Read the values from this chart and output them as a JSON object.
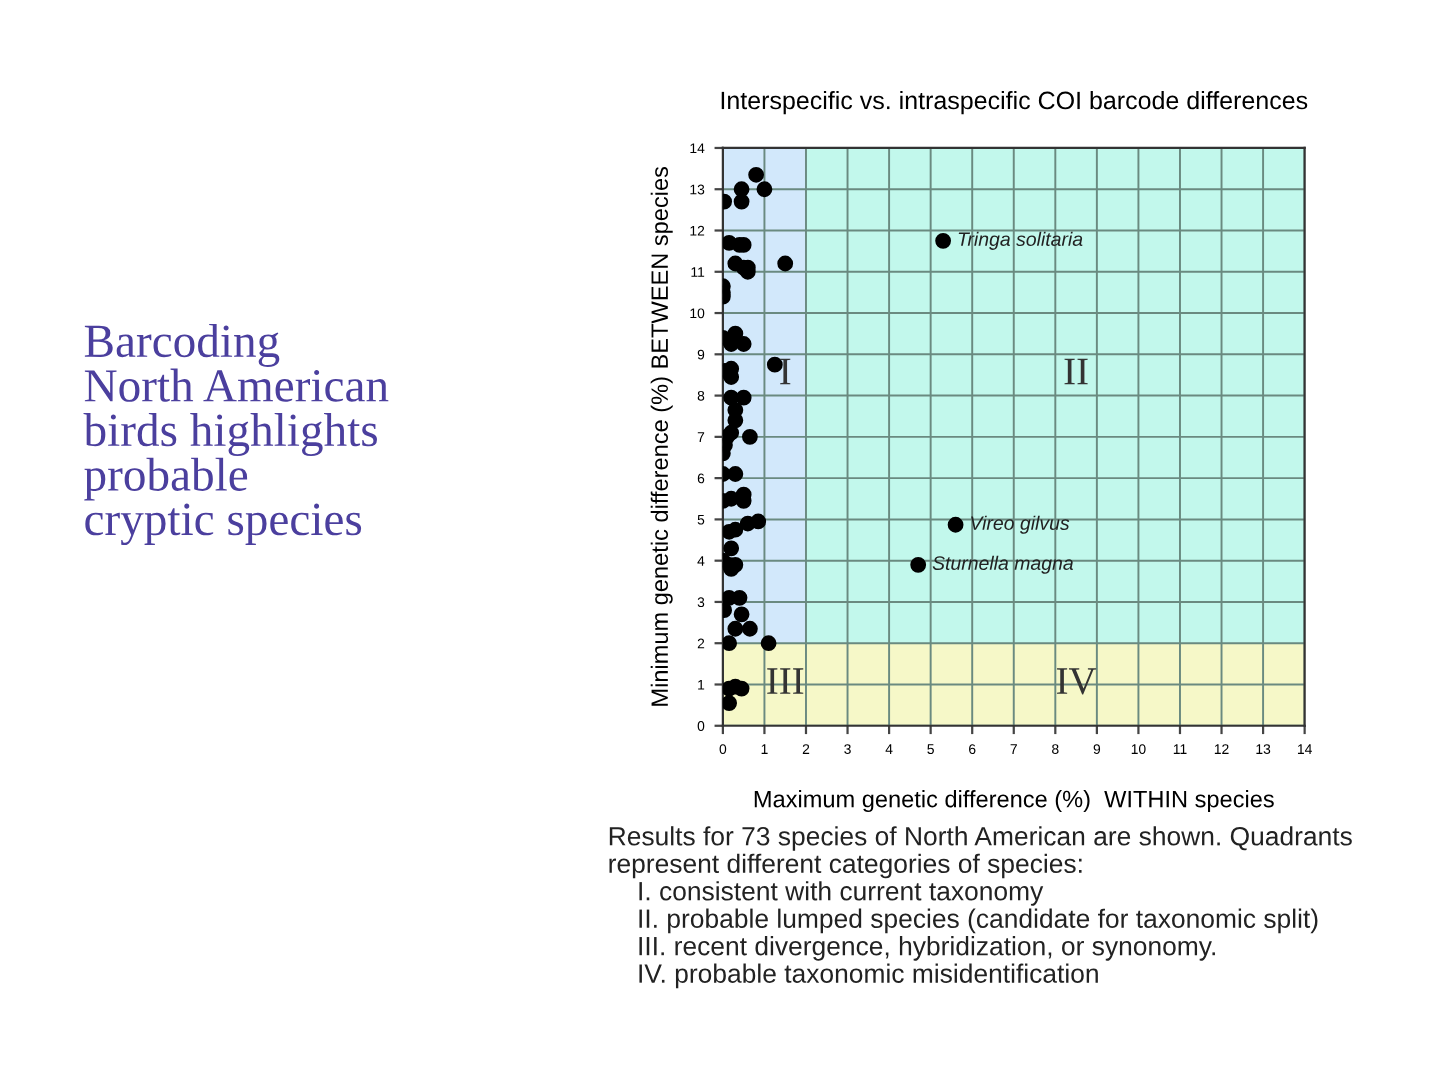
{
  "chart_data": {
    "type": "scatter",
    "title": "Interspecific vs. intraspecific COI barcode differences",
    "xlabel": "Maximum genetic difference (%)  WITHIN species",
    "ylabel": "Minimum genetic difference (%) BETWEEN species",
    "x": [
      0.8,
      0.45,
      0.45,
      1.0,
      0.03,
      0.15,
      0.4,
      0.5,
      0.3,
      0.5,
      0.6,
      0.6,
      1.5,
      0,
      0,
      0,
      0.3,
      0,
      0.2,
      0.5,
      1.25,
      0.05,
      0.2,
      0.2,
      0.2,
      0.5,
      0.3,
      0.3,
      0.2,
      0.1,
      0.65,
      0.05,
      0,
      0,
      0.3,
      0,
      0.2,
      0.5,
      0.5,
      0.15,
      0.3,
      0.6,
      0.85,
      0.2,
      0,
      0.15,
      0.2,
      0.3,
      0.15,
      0.4,
      0.03,
      0.45,
      0.3,
      0.65,
      0.15,
      1.1,
      0.15,
      0.3,
      0.45,
      0.15,
      4.7,
      5.6,
      5.3
    ],
    "values": [
      13.35,
      13.0,
      12.7,
      13.0,
      12.7,
      11.7,
      11.65,
      11.65,
      11.2,
      11.1,
      11.1,
      11.0,
      11.2,
      10.65,
      10.5,
      10.4,
      9.5,
      9.4,
      9.25,
      9.25,
      8.75,
      8.6,
      8.45,
      8.65,
      7.95,
      7.95,
      7.65,
      7.4,
      7.1,
      7.0,
      7.0,
      6.8,
      6.6,
      6.1,
      6.1,
      5.45,
      5.5,
      5.6,
      5.45,
      4.7,
      4.75,
      4.9,
      4.95,
      4.3,
      4.0,
      3.9,
      3.8,
      3.9,
      3.1,
      3.1,
      2.8,
      2.7,
      2.35,
      2.35,
      2.0,
      2.0,
      0.9,
      0.95,
      0.9,
      0.55,
      3.9,
      4.87,
      11.75
    ],
    "color": "#000000",
    "marker": "circle",
    "xlim": [
      0,
      14
    ],
    "ylim": [
      0,
      14
    ],
    "xticks": [
      0,
      1,
      2,
      3,
      4,
      5,
      6,
      7,
      8,
      9,
      10,
      11,
      12,
      13,
      14
    ],
    "yticks": [
      0,
      1,
      2,
      3,
      4,
      5,
      6,
      7,
      8,
      9,
      10,
      11,
      12,
      13,
      14
    ],
    "grid": true,
    "bands": [
      {
        "axis": "x",
        "from": 0,
        "to": 2,
        "color": "#d2e8fb"
      },
      {
        "axis": "x",
        "from": 2,
        "to": 14,
        "color": "#c2f8ec"
      },
      {
        "axis": "y",
        "from": 0,
        "to": 2,
        "color": "#f6f8c8"
      }
    ],
    "annotations": [
      "Barcoding\nNorth American\nbirds highlights\nprobable\ncryptic species",
      "Results for 73 species of North American are shown. Quadrants\nrepresent different categories of species:\n    I. consistent with current taxonomy\n    II. probable lumped species (candidate for taxonomic split)\n    III. recent divergence, hybridization, or synonomy.\n    IV. probable taxonomic misidentification",
      {
        "text": "Tringa solitaria",
        "x": 5.3,
        "y": 11.75
      },
      {
        "text": "Vireo gilvus",
        "x": 5.6,
        "y": 4.87
      },
      {
        "text": "Sturnella magna",
        "x": 4.7,
        "y": 3.9
      },
      "I",
      "II",
      "III",
      "IV"
    ]
  }
}
